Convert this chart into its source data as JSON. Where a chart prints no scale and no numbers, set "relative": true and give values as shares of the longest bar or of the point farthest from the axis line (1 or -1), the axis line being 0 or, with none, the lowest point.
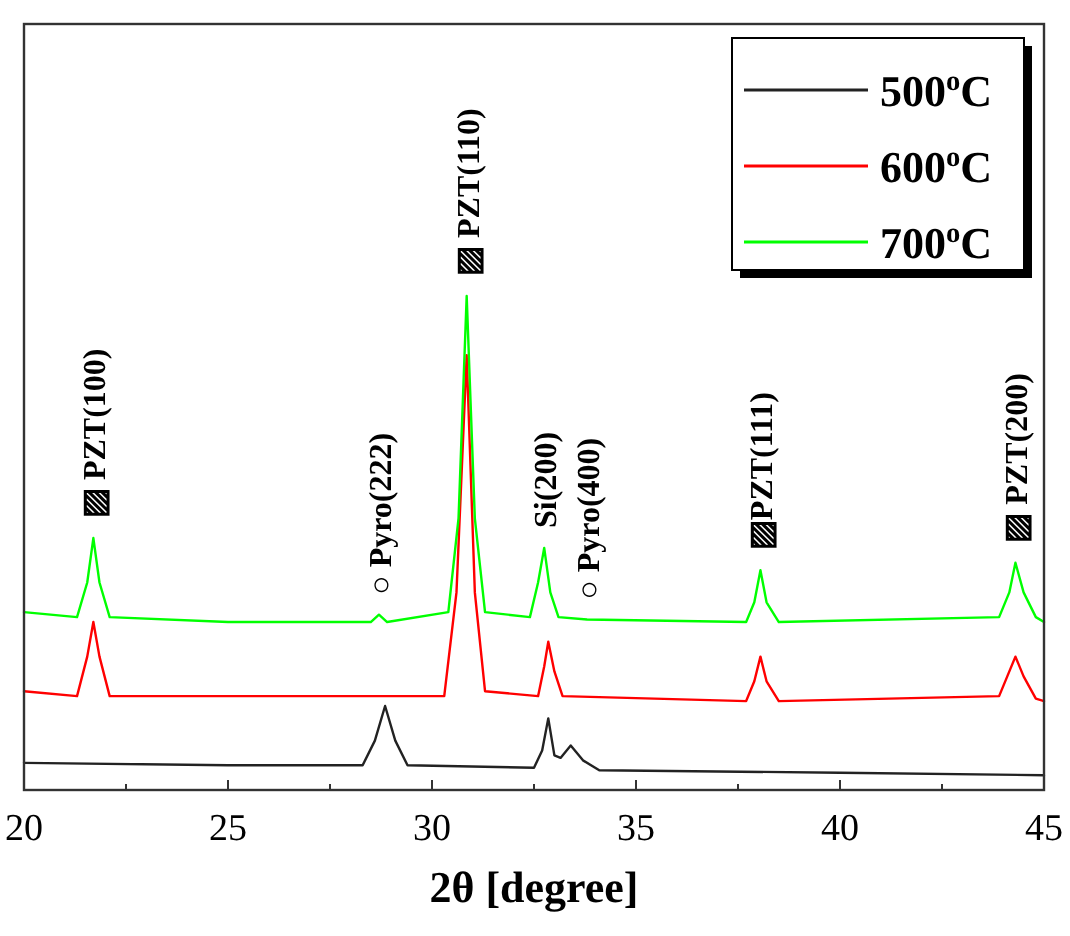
{
  "chart_data": {
    "type": "line",
    "relative": true,
    "xlabel": "2θ [degree]",
    "xlim": [
      20,
      45
    ],
    "xticks": [
      20,
      {
        "value": 22.5,
        "label": null
      },
      25,
      {
        "value": 27.5,
        "label": null
      },
      30,
      {
        "value": 32.5,
        "label": null
      },
      35,
      {
        "value": 37.5,
        "label": null
      },
      40,
      {
        "value": 42.5,
        "label": null
      },
      45
    ],
    "legend": "top right",
    "grid": false,
    "marker": "none",
    "line_style": "solid",
    "series": [
      {
        "name": "500$^{o}$C",
        "color": "#222222",
        "x": [
          20,
          25,
          28.3,
          28.6,
          28.85,
          29.1,
          29.4,
          32.5,
          32.7,
          32.85,
          33.0,
          33.15,
          33.4,
          33.7,
          34.1,
          40,
          45
        ],
        "values": [
          0.055,
          0.05,
          0.05,
          0.1,
          0.17,
          0.1,
          0.05,
          0.045,
          0.08,
          0.145,
          0.07,
          0.065,
          0.09,
          0.06,
          0.04,
          0.035,
          0.03
        ]
      },
      {
        "name": "600$^{o}$C",
        "color": "#ff0000",
        "x": [
          20,
          21.3,
          21.55,
          21.7,
          21.85,
          22.1,
          25,
          30.3,
          30.6,
          30.85,
          31.05,
          31.3,
          32.6,
          32.75,
          32.85,
          33.0,
          33.2,
          37.7,
          37.9,
          38.05,
          38.2,
          38.5,
          43.9,
          44.1,
          44.3,
          44.5,
          44.8,
          45
        ],
        "values": [
          0.2,
          0.19,
          0.27,
          0.34,
          0.27,
          0.19,
          0.19,
          0.19,
          0.4,
          0.88,
          0.4,
          0.2,
          0.19,
          0.25,
          0.3,
          0.24,
          0.19,
          0.18,
          0.22,
          0.27,
          0.22,
          0.18,
          0.19,
          0.23,
          0.27,
          0.23,
          0.185,
          0.18
        ]
      },
      {
        "name": "700$^{o}$C",
        "color": "#00ff00",
        "x": [
          20,
          21.3,
          21.55,
          21.7,
          21.85,
          22.1,
          25,
          28.5,
          28.7,
          28.9,
          30.4,
          30.65,
          30.85,
          31.05,
          31.3,
          32.4,
          32.6,
          32.75,
          32.9,
          33.1,
          33.8,
          37.7,
          37.9,
          38.05,
          38.2,
          38.5,
          43.9,
          44.15,
          44.3,
          44.5,
          44.8,
          45
        ],
        "values": [
          0.36,
          0.35,
          0.42,
          0.51,
          0.42,
          0.35,
          0.34,
          0.34,
          0.355,
          0.34,
          0.36,
          0.55,
          1,
          0.55,
          0.36,
          0.35,
          0.42,
          0.49,
          0.4,
          0.35,
          0.345,
          0.34,
          0.38,
          0.445,
          0.38,
          0.34,
          0.35,
          0.4,
          0.46,
          0.4,
          0.35,
          0.34
        ]
      }
    ],
    "annotations": [
      {
        "text": "▨ PZT(100)",
        "x": 21.7,
        "y": 0.51
      },
      {
        "text": "▨ PZT(110)",
        "x": 30.85,
        "y": 1
      },
      {
        "text": "○ Pyro(222)",
        "x": 28.7,
        "y": 0.355
      },
      {
        "text": "Si(200)",
        "x": 32.75,
        "y": 0.49
      },
      {
        "text": "○ Pyro(400)",
        "x": 33.8,
        "y": 0.345
      },
      {
        "text": "▨PZT(111)",
        "x": 38.05,
        "y": 0.445
      },
      {
        "text": "▨ PZT(200)",
        "x": 44.3,
        "y": 0.46
      }
    ]
  }
}
